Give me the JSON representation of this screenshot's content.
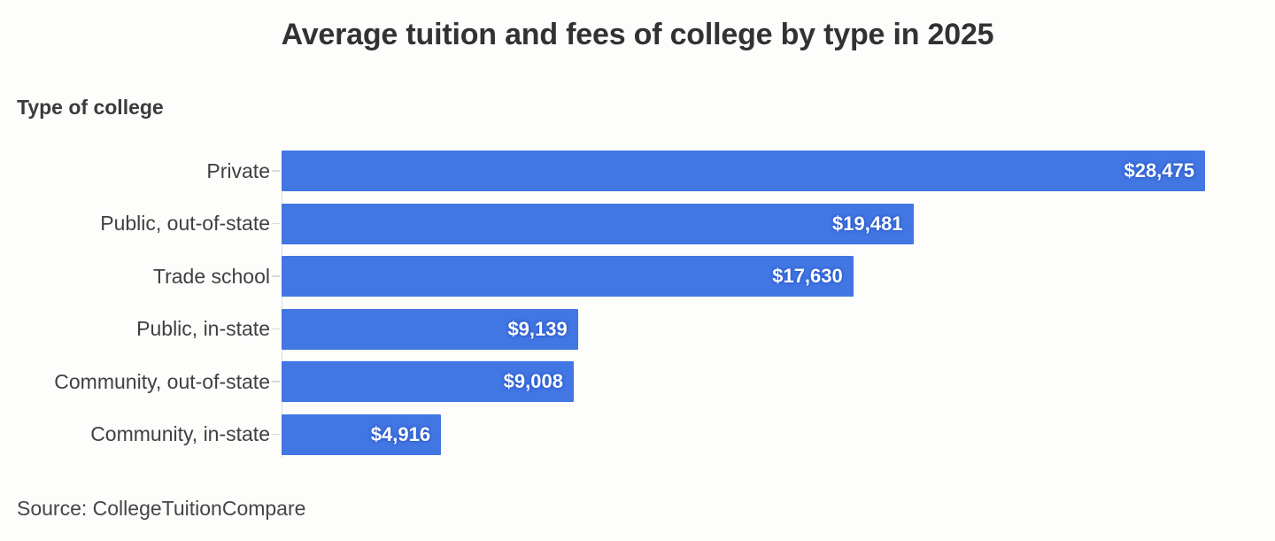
{
  "title": "Average tuition and fees of college by type in 2025",
  "axis_title": "Type of college",
  "source": "Source: CollegeTuitionCompare",
  "colors": {
    "bar": "#4276e3",
    "title_text": "#323232",
    "label_text": "#404040",
    "value_text": "#ffffff",
    "axis_line": "#dcdcdc",
    "background": "#fdfdfb"
  },
  "chart_data": {
    "type": "bar",
    "orientation": "horizontal",
    "title": "Average tuition and fees of college by type in 2025",
    "xlabel": "",
    "ylabel": "Type of college",
    "categories": [
      "Private",
      "Public, out-of-state",
      "Trade school",
      "Public, in-state",
      "Community, out-of-state",
      "Community, in-state"
    ],
    "values": [
      28475,
      19481,
      17630,
      9139,
      9008,
      4916
    ],
    "value_labels": [
      "$28,475",
      "$19,481",
      "$17,630",
      "$9,139",
      "$9,008",
      "$4,916"
    ],
    "xlim": [
      0,
      28475
    ],
    "grid": false,
    "legend": false,
    "bar_color": "#4276e3",
    "source": "Source: CollegeTuitionCompare"
  }
}
